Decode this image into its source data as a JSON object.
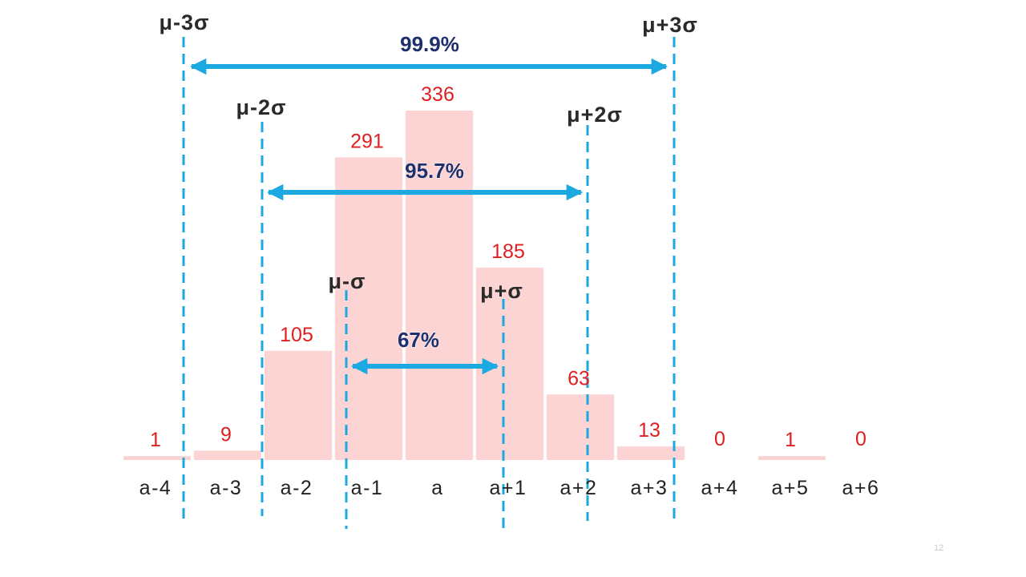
{
  "chart_data": {
    "type": "bar",
    "categories": [
      "a-4",
      "a-3",
      "a-2",
      "a-1",
      "a",
      "a+1",
      "a+2",
      "a+3",
      "a+4",
      "a+5",
      "a+6"
    ],
    "values": [
      1,
      9,
      105,
      291,
      336,
      185,
      63,
      13,
      0,
      1,
      0
    ],
    "data_labels": [
      "1",
      "9",
      "105",
      "291",
      "336",
      "185",
      "63",
      "13",
      "0",
      "1",
      "0"
    ],
    "title": "",
    "xlabel": "",
    "ylabel": "",
    "ylim": [
      0,
      336
    ],
    "grid": false,
    "legend": "none",
    "bar_color": "#fcd4d4",
    "data_label_color": "#e02020",
    "sigma_lines": [
      {
        "label": "μ-3σ",
        "x": "a-4"
      },
      {
        "label": "μ-2σ",
        "x": "a-2"
      },
      {
        "label": "μ-σ",
        "x": "a-1"
      },
      {
        "label": "μ+σ",
        "x": "a+1"
      },
      {
        "label": "μ+2σ",
        "x": "a+2"
      },
      {
        "label": "μ+3σ",
        "x": "a+3"
      }
    ],
    "sigma_line_color": "#1ca8e0",
    "ranges": [
      {
        "label": "99.9%",
        "from": "μ-3σ",
        "to": "μ+3σ"
      },
      {
        "label": "95.7%",
        "from": "μ-2σ",
        "to": "μ+2σ"
      },
      {
        "label": "67%",
        "from": "μ-σ",
        "to": "μ+σ"
      }
    ],
    "range_arrow_color": "#1ca8e0",
    "range_label_color": "#1f2f6b"
  },
  "page_number": "12"
}
